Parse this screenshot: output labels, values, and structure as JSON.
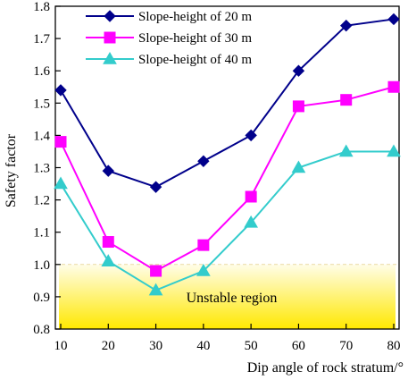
{
  "chart_data": {
    "type": "line",
    "xlabel": "Dip angle of rock stratum/°",
    "ylabel": "Safety factor",
    "x": [
      10,
      20,
      30,
      40,
      50,
      60,
      70,
      80
    ],
    "xlim": [
      10,
      80
    ],
    "ylim": [
      0.8,
      1.8
    ],
    "xticks": [
      "10",
      "20",
      "30",
      "40",
      "50",
      "60",
      "70",
      "80"
    ],
    "yticks": [
      "0.8",
      "0.9",
      "1.0",
      "1.1",
      "1.2",
      "1.3",
      "1.4",
      "1.5",
      "1.6",
      "1.7",
      "1.8"
    ],
    "grid": false,
    "legend_position": "top-left",
    "series": [
      {
        "name": "Slope-height of 20 m",
        "color": "#00008B",
        "marker": "diamond",
        "values": [
          1.54,
          1.29,
          1.24,
          1.32,
          1.4,
          1.6,
          1.74,
          1.76
        ]
      },
      {
        "name": "Slope-height of 30 m",
        "color": "#FF00FF",
        "marker": "square",
        "values": [
          1.38,
          1.07,
          0.98,
          1.06,
          1.21,
          1.49,
          1.51,
          1.55
        ]
      },
      {
        "name": "Slope-height of 40 m",
        "color": "#33CCCC",
        "marker": "triangle",
        "values": [
          1.25,
          1.01,
          0.92,
          0.98,
          1.13,
          1.3,
          1.35,
          1.35
        ]
      }
    ],
    "annotation": {
      "text": "Unstable region",
      "y_range": [
        0.8,
        1.0
      ],
      "threshold": 1.0,
      "gradient_top": "#FFFDE8",
      "gradient_bottom": "#FFE800"
    }
  }
}
